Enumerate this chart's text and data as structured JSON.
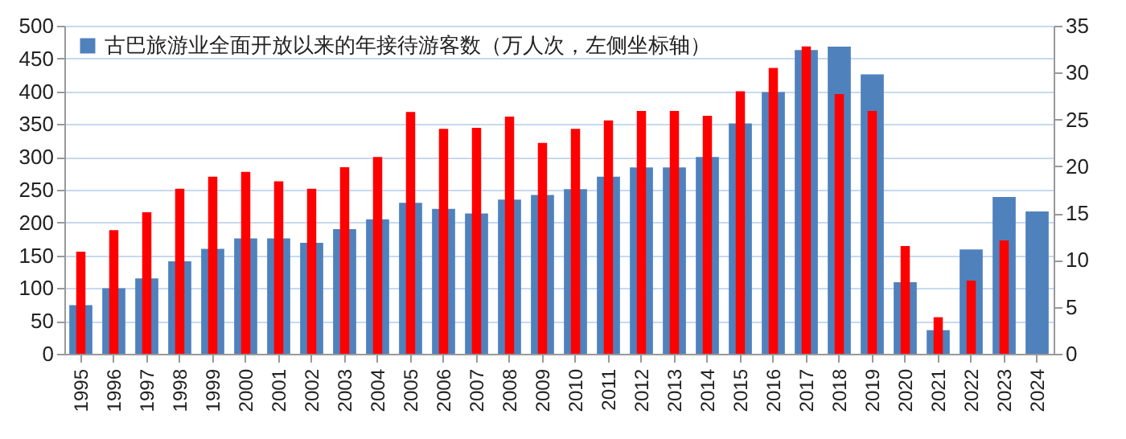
{
  "chart_data": {
    "type": "bar",
    "categories": [
      "1995",
      "1996",
      "1997",
      "1998",
      "1999",
      "2000",
      "2001",
      "2002",
      "2003",
      "2004",
      "2005",
      "2006",
      "2007",
      "2008",
      "2009",
      "2010",
      "2011",
      "2012",
      "2013",
      "2014",
      "2015",
      "2016",
      "2017",
      "2018",
      "2019",
      "2020",
      "2021",
      "2022",
      "2023",
      "2024"
    ],
    "series": [
      {
        "name": "古巴旅游业全面开放以来的年接待游客数（万人次，左侧坐标轴）",
        "color": "#4f81bd",
        "values": [
          74,
          100,
          115,
          141,
          160,
          176,
          176,
          169,
          190,
          205,
          230,
          221,
          214,
          235,
          242,
          251,
          270,
          284,
          284,
          300,
          351,
          399,
          463,
          468,
          426,
          109,
          36,
          159,
          239,
          217
        ]
      },
      {
        "color": "#ff0000",
        "axis": "y2",
        "values": [
          10.9,
          13.2,
          15.1,
          17.6,
          18.9,
          19.4,
          18.4,
          17.6,
          19.9,
          21.0,
          25.8,
          24.0,
          24.1,
          25.3,
          22.5,
          24.0,
          24.9,
          25.9,
          25.9,
          25.4,
          28.0,
          30.5,
          32.8,
          27.7,
          25.9,
          11.5,
          3.9,
          7.8,
          12.1,
          null
        ]
      }
    ],
    "ylim": [
      0,
      500
    ],
    "yticks": [
      0,
      50,
      100,
      150,
      200,
      250,
      300,
      350,
      400,
      450,
      500
    ],
    "y2lim": [
      0,
      35
    ],
    "y2ticks": [
      0,
      5,
      10,
      15,
      20,
      25,
      30,
      35
    ],
    "grid": "y",
    "legend": "top left"
  }
}
